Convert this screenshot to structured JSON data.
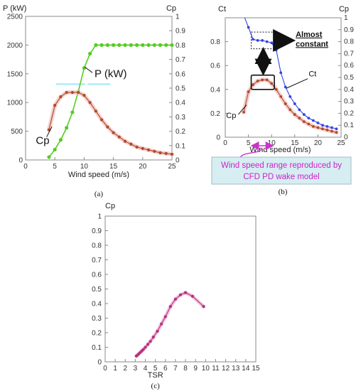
{
  "chart_data": [
    {
      "panel": "a",
      "caption": "(a)",
      "type": "line",
      "xlabel": "Wind speed (m/s)",
      "ylabel_left": "P (kW)",
      "ylabel_right": "Cp",
      "xlim": [
        0,
        25
      ],
      "ylim_left": [
        0,
        2500
      ],
      "ylim_right": [
        0,
        1
      ],
      "xticks": [
        0,
        5,
        10,
        15,
        20,
        25
      ],
      "yticks_left": [
        0,
        500,
        1000,
        1500,
        2000,
        2500
      ],
      "yticks_right": [
        0,
        0.1,
        0.2,
        0.3,
        0.4,
        0.5,
        0.6,
        0.7,
        0.8,
        0.9,
        1
      ],
      "grid": false,
      "series": [
        {
          "name": "P (kW)",
          "axis": "left",
          "color": "#55cc22",
          "x": [
            4,
            5,
            6,
            7,
            8,
            9,
            10,
            11,
            12,
            13,
            14,
            15,
            16,
            17,
            18,
            19,
            20,
            21,
            22,
            23,
            24,
            25
          ],
          "y": [
            50,
            180,
            350,
            560,
            830,
            1190,
            1600,
            1850,
            2000,
            2000,
            2000,
            2000,
            2000,
            2000,
            2000,
            2000,
            2000,
            2000,
            2000,
            2000,
            2000,
            2000
          ]
        },
        {
          "name": "Cp",
          "axis": "right",
          "color": "#b04a28",
          "x": [
            4,
            5,
            6,
            7,
            8,
            9,
            10,
            11,
            12,
            13,
            14,
            15,
            16,
            17,
            18,
            19,
            20,
            21,
            22,
            23,
            24,
            25
          ],
          "y": [
            0.21,
            0.38,
            0.44,
            0.47,
            0.47,
            0.47,
            0.45,
            0.4,
            0.34,
            0.28,
            0.23,
            0.19,
            0.16,
            0.13,
            0.11,
            0.09,
            0.08,
            0.07,
            0.06,
            0.05,
            0.045,
            0.04
          ]
        }
      ],
      "annotations": [
        {
          "text": "P (kW)",
          "x": 12.5,
          "y_left": 1440,
          "to_x": 10.1,
          "to_y_left": 1620
        },
        {
          "text": "Cp",
          "x": 3.2,
          "y_left": 280,
          "to_x": 4.5,
          "to_y_left": 580
        }
      ]
    },
    {
      "panel": "b",
      "caption": "(b)",
      "type": "line",
      "xlabel": "Wind speed (m/s)",
      "ylabel_left": "Ct",
      "ylabel_right": "Cp",
      "xlim": [
        0,
        25
      ],
      "ylim_left": [
        0,
        1
      ],
      "ylim_right": [
        0,
        1
      ],
      "xticks": [
        0,
        5,
        10,
        15,
        20,
        25
      ],
      "yticks_left": [
        0,
        0.2,
        0.4,
        0.6,
        0.8
      ],
      "yticks_right": [
        0,
        0.1,
        0.2,
        0.3,
        0.4,
        0.5,
        0.6,
        0.7,
        0.8,
        0.9,
        1
      ],
      "grid": false,
      "series": [
        {
          "name": "Ct",
          "axis": "left",
          "color": "#3344dd",
          "x": [
            4,
            5,
            6,
            7,
            8,
            9,
            10,
            11,
            12,
            13,
            14,
            15,
            16,
            17,
            18,
            19,
            20,
            21,
            22,
            23,
            24
          ],
          "y": [
            1.02,
            0.92,
            0.82,
            0.81,
            0.81,
            0.8,
            0.79,
            0.73,
            0.54,
            0.42,
            0.34,
            0.28,
            0.23,
            0.19,
            0.16,
            0.14,
            0.12,
            0.1,
            0.09,
            0.08,
            0.07
          ]
        },
        {
          "name": "Cp",
          "axis": "right",
          "color": "#b04a28",
          "x": [
            4,
            5,
            6,
            7,
            8,
            9,
            10,
            11,
            12,
            13,
            14,
            15,
            16,
            17,
            18,
            19,
            20,
            21,
            22,
            23,
            24
          ],
          "y": [
            0.21,
            0.38,
            0.44,
            0.47,
            0.48,
            0.48,
            0.45,
            0.4,
            0.34,
            0.28,
            0.23,
            0.19,
            0.16,
            0.13,
            0.11,
            0.09,
            0.08,
            0.07,
            0.06,
            0.05,
            0.04
          ]
        }
      ],
      "annotations": [
        {
          "text": "Almost constant",
          "x": 15.5,
          "y_left": 0.84
        },
        {
          "text": "Ct",
          "x": 18,
          "y_left": 0.51
        },
        {
          "text": "Cp",
          "x": 0.2,
          "y_left": 0.16
        },
        {
          "text": "Wind speed range reproduced by CFD PD wake model",
          "range_x": [
            5,
            11
          ]
        }
      ]
    },
    {
      "panel": "c",
      "caption": "(c)",
      "type": "line",
      "xlabel": "TSR",
      "ylabel": "Cp",
      "xlim": [
        0,
        15
      ],
      "ylim": [
        0,
        1
      ],
      "xticks": [
        0,
        1,
        2,
        3,
        4,
        5,
        6,
        7,
        8,
        9,
        10,
        11,
        12,
        13,
        14,
        15
      ],
      "yticks": [
        0,
        0.1,
        0.2,
        0.3,
        0.4,
        0.5,
        0.6,
        0.7,
        0.8,
        0.9,
        1
      ],
      "grid": false,
      "series": [
        {
          "name": "Cp",
          "color": "#b5337a",
          "x": [
            3.1,
            3.2,
            3.35,
            3.5,
            3.65,
            3.8,
            4.0,
            4.25,
            4.5,
            4.8,
            5.2,
            5.6,
            6.0,
            6.5,
            7.0,
            7.5,
            8.0,
            8.7,
            9.8
          ],
          "y": [
            0.04,
            0.045,
            0.055,
            0.065,
            0.075,
            0.085,
            0.1,
            0.12,
            0.14,
            0.17,
            0.21,
            0.26,
            0.31,
            0.38,
            0.43,
            0.46,
            0.475,
            0.45,
            0.38
          ]
        }
      ]
    }
  ]
}
